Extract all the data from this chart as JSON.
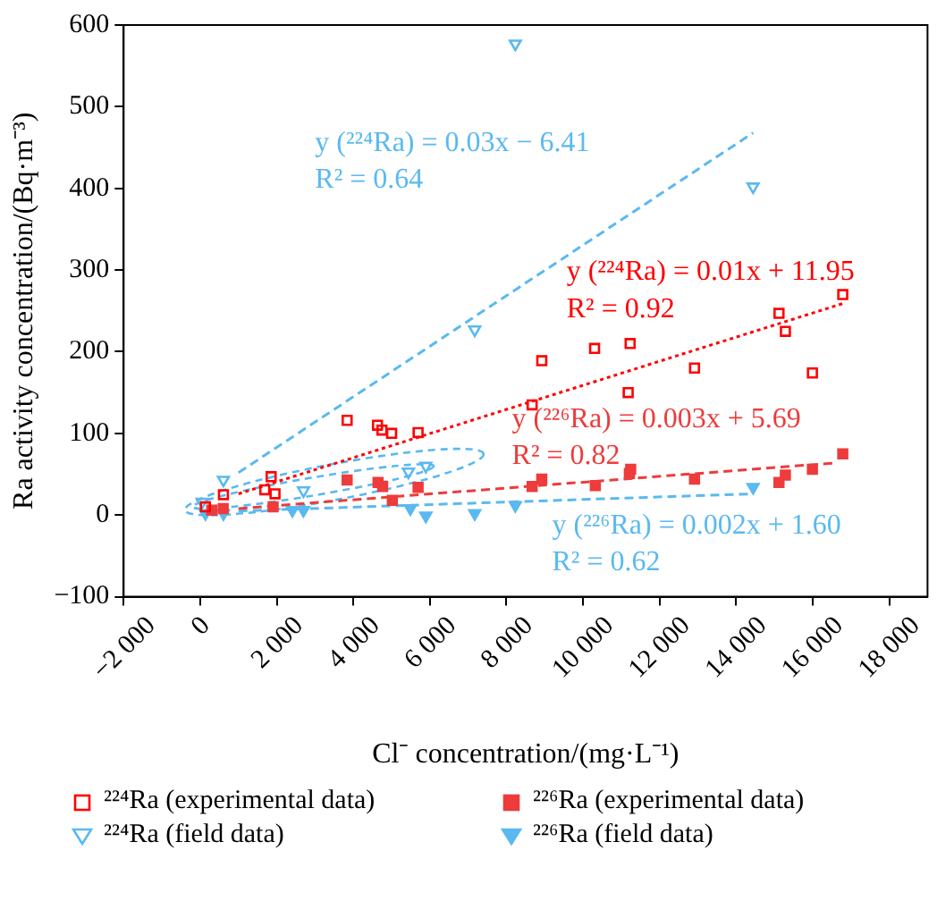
{
  "chart_data": {
    "type": "scatter",
    "xlabel": "Cl⁻ concentration/(mg·L⁻¹)",
    "ylabel": "Ra activity concentration/(Bq·m⁻³)",
    "xlim": [
      -2000,
      19000
    ],
    "xticks": [
      {
        "value": -2000,
        "label": "−2 000"
      },
      0,
      {
        "value": 2000,
        "label": "2 000"
      },
      {
        "value": 4000,
        "label": "4 000"
      },
      {
        "value": 6000,
        "label": "6 000"
      },
      {
        "value": 8000,
        "label": "8 000"
      },
      {
        "value": 10000,
        "label": "10 000"
      },
      {
        "value": 12000,
        "label": "12 000"
      },
      {
        "value": 14000,
        "label": "14 000"
      },
      {
        "value": 16000,
        "label": "16 000"
      },
      {
        "value": 18000,
        "label": "18 000"
      }
    ],
    "ylim": [
      -100,
      600
    ],
    "yticks": [
      {
        "value": -100,
        "label": "−100"
      },
      0,
      100,
      200,
      300,
      400,
      500,
      600
    ],
    "grid": false,
    "legend": "bottom",
    "series": [
      {
        "name": "²²⁴Ra (experimental data)",
        "color": "#ff0000",
        "marker": "square",
        "x": [
          136,
          606,
          1687,
          1853,
          1954,
          3838,
          4631,
          4747,
          5000,
          5692,
          8671,
          8923,
          10302,
          11180,
          11231,
          12913,
          15120,
          15287,
          15993,
          16786
        ],
        "values": [
          10,
          25,
          31,
          47,
          26,
          116,
          110,
          104,
          100,
          101,
          135,
          189,
          204,
          150,
          210,
          180,
          247,
          225,
          174,
          270
        ]
      },
      {
        "name": "²²⁶Ra (experimental data)",
        "color": "#ee3b3b",
        "marker": "square",
        "x": [
          300,
          600,
          1904,
          3838,
          4646,
          4766,
          5020,
          5692,
          8671,
          8923,
          10322,
          11211,
          11245,
          12913,
          15120,
          15287,
          15993,
          16786
        ],
        "values": [
          6,
          8,
          10,
          43,
          40,
          35,
          18,
          34,
          35,
          44,
          36,
          51,
          56,
          44,
          40,
          49,
          56,
          75
        ]
      },
      {
        "name": "²²⁴Ra (field data)",
        "color": "#5ab9f0",
        "marker": "triangle",
        "x": [
          50,
          606,
          2697,
          5439,
          5894,
          7171,
          8232,
          14443
        ],
        "values": [
          16,
          43,
          30,
          53,
          60,
          227,
          577,
          402
        ]
      },
      {
        "name": "²²⁶Ra (field data)",
        "color": "#5ab9f0",
        "marker": "triangle",
        "x": [
          136,
          606,
          2409,
          2697,
          5490,
          5894,
          7171,
          8232,
          14443
        ],
        "values": [
          2,
          2,
          6,
          6,
          8,
          -1,
          2,
          12,
          34
        ]
      },
      {
        "type": "line",
        "color": "#ff0000",
        "line_style": "dotted",
        "marker": "none",
        "x": [
          1000,
          16786
        ],
        "values": [
          26,
          259
        ]
      },
      {
        "type": "line",
        "color": "#ee3b3b",
        "line_style": "dashed",
        "marker": "none",
        "x": [
          1000,
          16634
        ],
        "values": [
          8,
          64
        ]
      },
      {
        "type": "line",
        "color": "#5ab9f0",
        "line_style": "dashed",
        "marker": "none",
        "x": [
          1000,
          14443
        ],
        "values": [
          52,
          468
        ]
      },
      {
        "type": "line",
        "color": "#5ab9f0",
        "line_style": "dashed",
        "marker": "none",
        "x": [
          1000,
          14443
        ],
        "values": [
          5,
          26
        ]
      }
    ],
    "annotations": [
      "y (²²⁴Ra) = 0.03x − 6.41",
      "R² = 0.64",
      "y (²²⁴Ra) = 0.01x + 11.95",
      "R² = 0.92",
      "y (²²⁶Ra) = 0.003x + 5.69",
      "R² = 0.82",
      "y (²²⁶Ra) = 0.002x + 1.60",
      "R² = 0.62"
    ]
  }
}
